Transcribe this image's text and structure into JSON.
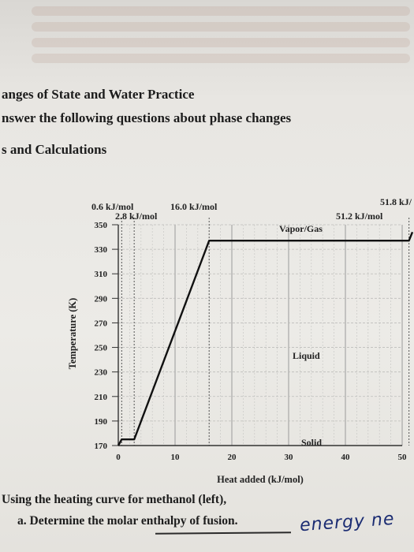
{
  "heading": {
    "title": "anges of State and Water Practice",
    "instruction": "nswer the following questions about phase changes",
    "section": "s and Calculations"
  },
  "chart_data": {
    "type": "line",
    "title": "",
    "xlabel": "Heat added (kJ/mol)",
    "ylabel": "Temperature (K)",
    "xlim": [
      0,
      50
    ],
    "ylim": [
      170,
      350
    ],
    "x_ticks": [
      0,
      10,
      20,
      30,
      40,
      50
    ],
    "y_ticks": [
      170,
      190,
      210,
      230,
      250,
      270,
      290,
      310,
      330,
      350
    ],
    "grid": true,
    "series": [
      {
        "x": [
          0,
          0.6,
          2.8,
          16.0,
          51.2,
          51.8
        ],
        "y": [
          170,
          175,
          175,
          337,
          337,
          344
        ]
      }
    ],
    "annotations": {
      "a": "0.6 kJ/mol",
      "b": "2.8 kJ/mol",
      "c": "16.0 kJ/mol",
      "d": "51.8 kJ/",
      "e": "51.2 kJ/mol",
      "vapor": "Vapor/Gas",
      "liquid": "Liquid",
      "solid": "Solid"
    }
  },
  "questions": {
    "q1": "Using the heating curve for methanol (left),",
    "q2_prefix": "a. Determine the ",
    "q2_underlined": "molar enthalpy of fusion.",
    "handwriting": "energy ne"
  }
}
